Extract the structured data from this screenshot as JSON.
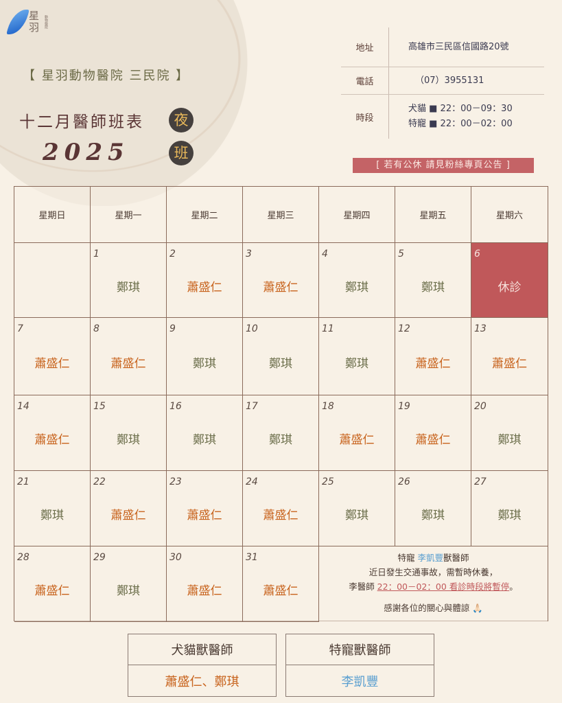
{
  "logo": {
    "name": "星羽",
    "sub": "動物醫院"
  },
  "clinic": "【 星羽動物醫院 三民院 】",
  "title": "十二月醫師班表",
  "year": "2025",
  "badges": [
    "夜",
    "班"
  ],
  "info": {
    "address_label": "地址",
    "address": "高雄市三民區信國路20號",
    "phone_label": "電話",
    "phone": "（07）3955131",
    "hours_label": "時段",
    "hours": [
      "犬貓 ■ 22：00－09：30",
      "特寵 ■ 22：00－02：00"
    ]
  },
  "notice_top": "[ 若有公休 請見粉絲專頁公告 ]",
  "colors": {
    "doctor_a": "#c8641e",
    "doctor_b": "#6b6e4a",
    "closed": "#c0585a"
  },
  "weekdays": [
    "星期日",
    "星期一",
    "星期二",
    "星期三",
    "星期四",
    "星期五",
    "星期六"
  ],
  "weeks": [
    [
      null,
      {
        "d": "1",
        "n": "鄭琪"
      },
      {
        "d": "2",
        "n": "蕭盛仁"
      },
      {
        "d": "3",
        "n": "蕭盛仁"
      },
      {
        "d": "4",
        "n": "鄭琪"
      },
      {
        "d": "5",
        "n": "鄭琪"
      },
      {
        "d": "6",
        "n": "休診",
        "closed": true
      }
    ],
    [
      {
        "d": "7",
        "n": "蕭盛仁"
      },
      {
        "d": "8",
        "n": "蕭盛仁"
      },
      {
        "d": "9",
        "n": "鄭琪"
      },
      {
        "d": "10",
        "n": "鄭琪"
      },
      {
        "d": "11",
        "n": "鄭琪"
      },
      {
        "d": "12",
        "n": "蕭盛仁"
      },
      {
        "d": "13",
        "n": "蕭盛仁"
      }
    ],
    [
      {
        "d": "14",
        "n": "蕭盛仁"
      },
      {
        "d": "15",
        "n": "鄭琪"
      },
      {
        "d": "16",
        "n": "鄭琪"
      },
      {
        "d": "17",
        "n": "鄭琪"
      },
      {
        "d": "18",
        "n": "蕭盛仁"
      },
      {
        "d": "19",
        "n": "蕭盛仁"
      },
      {
        "d": "20",
        "n": "鄭琪"
      }
    ],
    [
      {
        "d": "21",
        "n": "鄭琪"
      },
      {
        "d": "22",
        "n": "蕭盛仁"
      },
      {
        "d": "23",
        "n": "蕭盛仁"
      },
      {
        "d": "24",
        "n": "蕭盛仁"
      },
      {
        "d": "25",
        "n": "鄭琪"
      },
      {
        "d": "26",
        "n": "鄭琪"
      },
      {
        "d": "27",
        "n": "鄭琪"
      }
    ],
    [
      {
        "d": "28",
        "n": "蕭盛仁"
      },
      {
        "d": "29",
        "n": "鄭琪"
      },
      {
        "d": "30",
        "n": "蕭盛仁"
      },
      {
        "d": "31",
        "n": "蕭盛仁"
      }
    ]
  ],
  "note": {
    "l1a": "特寵 ",
    "l1b": "李凱豐",
    "l1c": "獸醫師",
    "l2": "近日發生交通事故，需暫時休養，",
    "l3a": "李醫師 ",
    "l3b": "22：00－02：00 看診時段將暫停",
    "l3c": "。",
    "l4": "感謝各位的關心與體諒 🙏🏻"
  },
  "legend": [
    {
      "title": "犬貓獸醫師",
      "names": "蕭盛仁、鄭琪"
    },
    {
      "title": "特寵獸醫師",
      "names": "李凱豐"
    }
  ]
}
